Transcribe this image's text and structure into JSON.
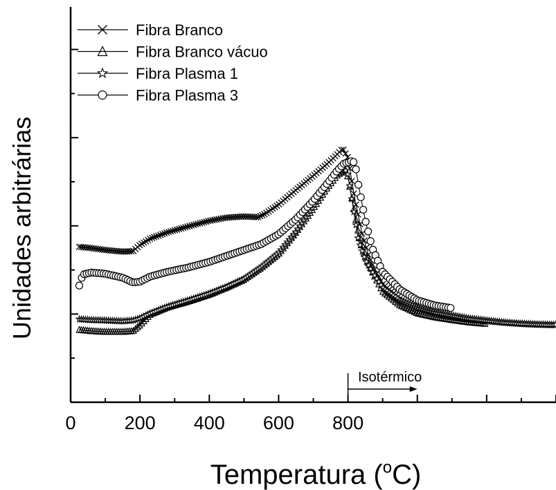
{
  "chart_data": {
    "type": "line",
    "xlabel_main": "Temperatura (",
    "xlabel_sup": "o",
    "xlabel_end": "C)",
    "ylabel": "Unidades arbitrárias",
    "xlim": [
      0,
      1400
    ],
    "x_tick_labels": [
      {
        "value": 0,
        "label": "0"
      },
      {
        "value": 200,
        "label": "200"
      },
      {
        "value": 400,
        "label": "400"
      },
      {
        "value": 600,
        "label": "600"
      },
      {
        "value": 800,
        "label": "800"
      }
    ],
    "annotation": {
      "label": "Isotérmico",
      "x_start": 800,
      "x_end": 1000
    },
    "legend_position": "top-left",
    "series": [
      {
        "name": "Fibra Branco",
        "marker": "x",
        "x": [
          25,
          60,
          100,
          150,
          180,
          200,
          230,
          280,
          340,
          400,
          450,
          500,
          540,
          560,
          600,
          650,
          700,
          740,
          770,
          785,
          800,
          820,
          840,
          860,
          880,
          900,
          950,
          1000,
          1050,
          1100,
          1150,
          1200,
          1250,
          1300,
          1350,
          1400
        ],
        "y": [
          0.393,
          0.39,
          0.385,
          0.381,
          0.382,
          0.398,
          0.414,
          0.43,
          0.445,
          0.459,
          0.467,
          0.47,
          0.468,
          0.476,
          0.5,
          0.537,
          0.573,
          0.603,
          0.628,
          0.642,
          0.618,
          0.512,
          0.43,
          0.37,
          0.33,
          0.3,
          0.26,
          0.237,
          0.225,
          0.216,
          0.21,
          0.205,
          0.201,
          0.198,
          0.196,
          0.195
        ]
      },
      {
        "name": "Fibra Branco vácuo",
        "marker": "triangle",
        "x": [
          25,
          60,
          100,
          150,
          180,
          200,
          230,
          280,
          340,
          400,
          450,
          500,
          550,
          600,
          650,
          700,
          740,
          770,
          790,
          800,
          810,
          830,
          850,
          870,
          900,
          950,
          1000,
          1050,
          1100,
          1150,
          1200
        ],
        "y": [
          0.183,
          0.18,
          0.178,
          0.178,
          0.18,
          0.195,
          0.222,
          0.24,
          0.255,
          0.272,
          0.29,
          0.31,
          0.34,
          0.375,
          0.43,
          0.49,
          0.542,
          0.575,
          0.586,
          0.57,
          0.52,
          0.43,
          0.37,
          0.33,
          0.28,
          0.245,
          0.225,
          0.215,
          0.208,
          0.202,
          0.198
        ]
      },
      {
        "name": "Fibra Plasma 1",
        "marker": "star",
        "x": [
          25,
          60,
          100,
          150,
          180,
          200,
          230,
          280,
          340,
          400,
          450,
          500,
          550,
          600,
          650,
          700,
          740,
          770,
          790,
          800,
          810,
          830,
          850,
          870,
          900,
          950,
          1000,
          1050,
          1100,
          1150,
          1200,
          1250,
          1300,
          1350,
          1400
        ],
        "y": [
          0.21,
          0.208,
          0.207,
          0.205,
          0.207,
          0.212,
          0.225,
          0.242,
          0.258,
          0.275,
          0.292,
          0.312,
          0.342,
          0.378,
          0.432,
          0.495,
          0.547,
          0.58,
          0.591,
          0.575,
          0.52,
          0.41,
          0.36,
          0.33,
          0.29,
          0.258,
          0.24,
          0.228,
          0.22,
          0.212,
          0.207,
          0.202,
          0.199,
          0.197,
          0.196
        ]
      },
      {
        "name": "Fibra Plasma 3",
        "marker": "circle",
        "x": [
          25,
          35,
          60,
          100,
          150,
          180,
          200,
          230,
          280,
          340,
          400,
          450,
          500,
          550,
          600,
          650,
          700,
          740,
          770,
          790,
          800,
          810,
          820,
          830,
          850,
          870,
          900,
          950,
          1000,
          1050,
          1100
        ],
        "y": [
          0.295,
          0.323,
          0.328,
          0.325,
          0.315,
          0.303,
          0.305,
          0.318,
          0.33,
          0.341,
          0.355,
          0.37,
          0.385,
          0.4,
          0.425,
          0.463,
          0.51,
          0.553,
          0.587,
          0.605,
          0.606,
          0.61,
          0.606,
          0.55,
          0.46,
          0.39,
          0.33,
          0.285,
          0.258,
          0.245,
          0.238
        ]
      }
    ]
  }
}
